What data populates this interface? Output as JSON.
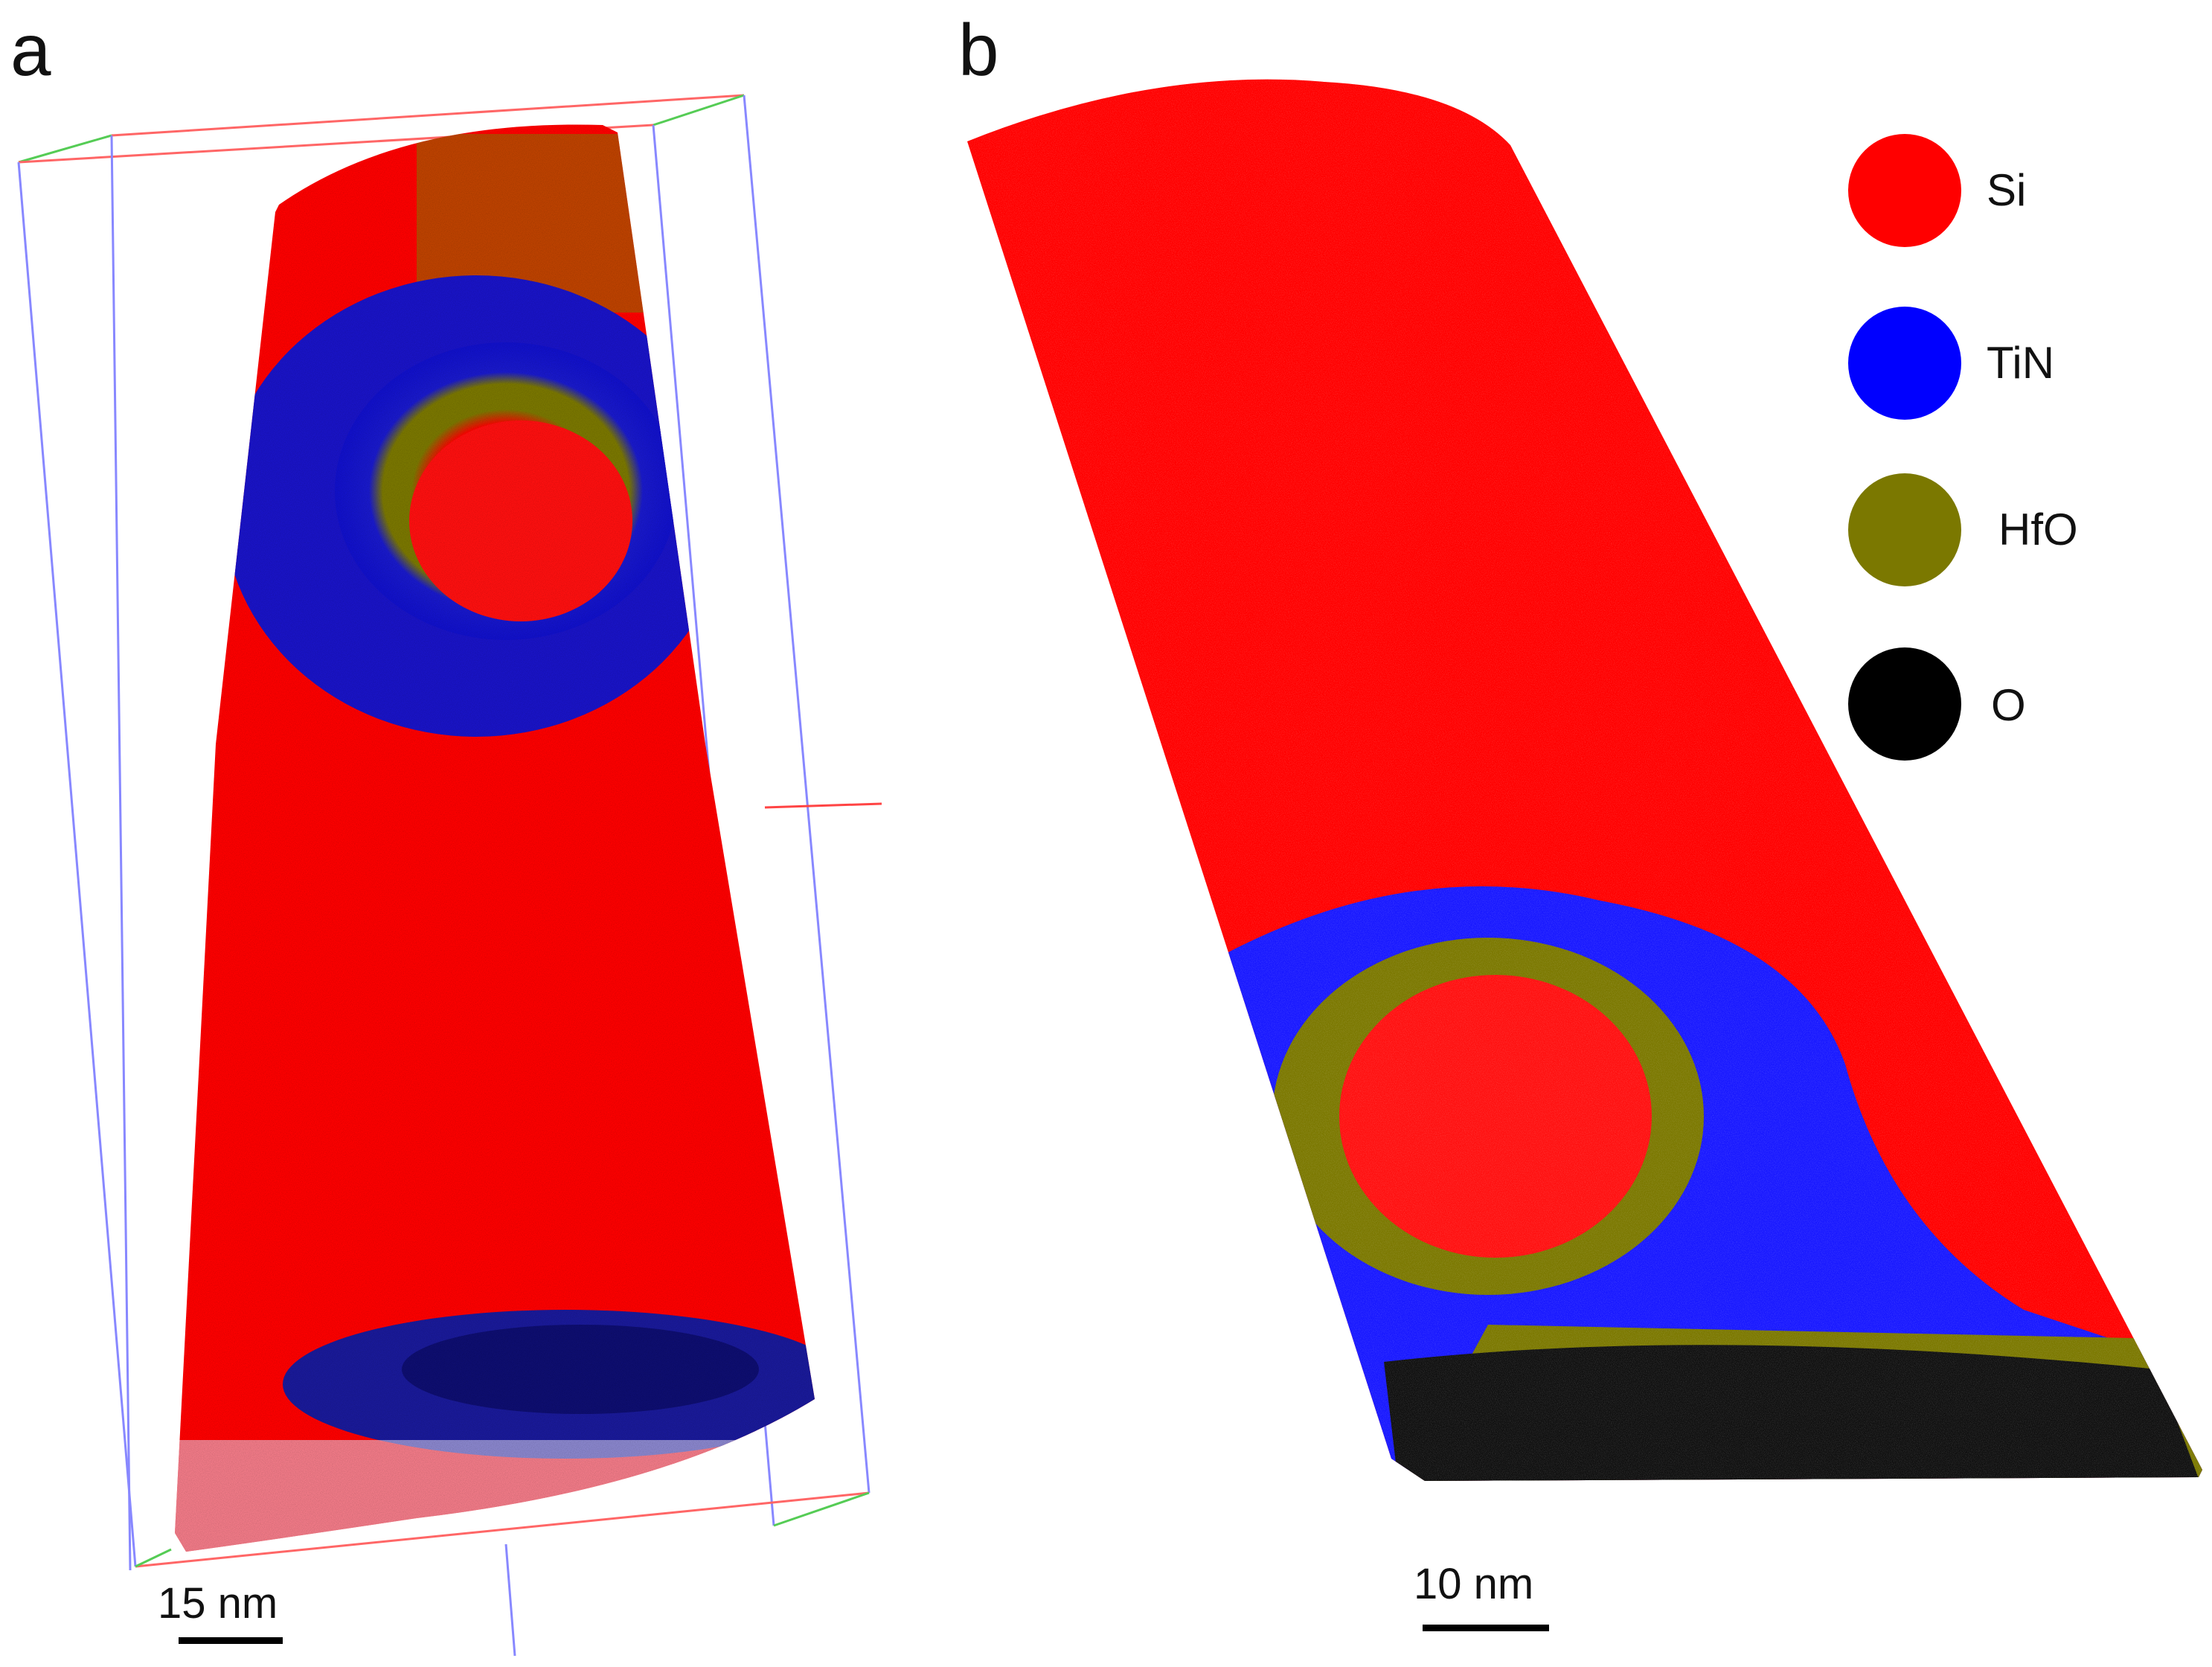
{
  "panels": {
    "a": {
      "label": "a",
      "scale_bar_text": "15 nm"
    },
    "b": {
      "label": "b",
      "scale_bar_text": "10 nm"
    }
  },
  "legend": [
    {
      "name": "Si",
      "color": "#ff0000"
    },
    {
      "name": "TiN",
      "color": "#0000ff"
    },
    {
      "name": "HfO",
      "color": "#7b7800"
    },
    {
      "name": "O",
      "color": "#000000"
    }
  ]
}
